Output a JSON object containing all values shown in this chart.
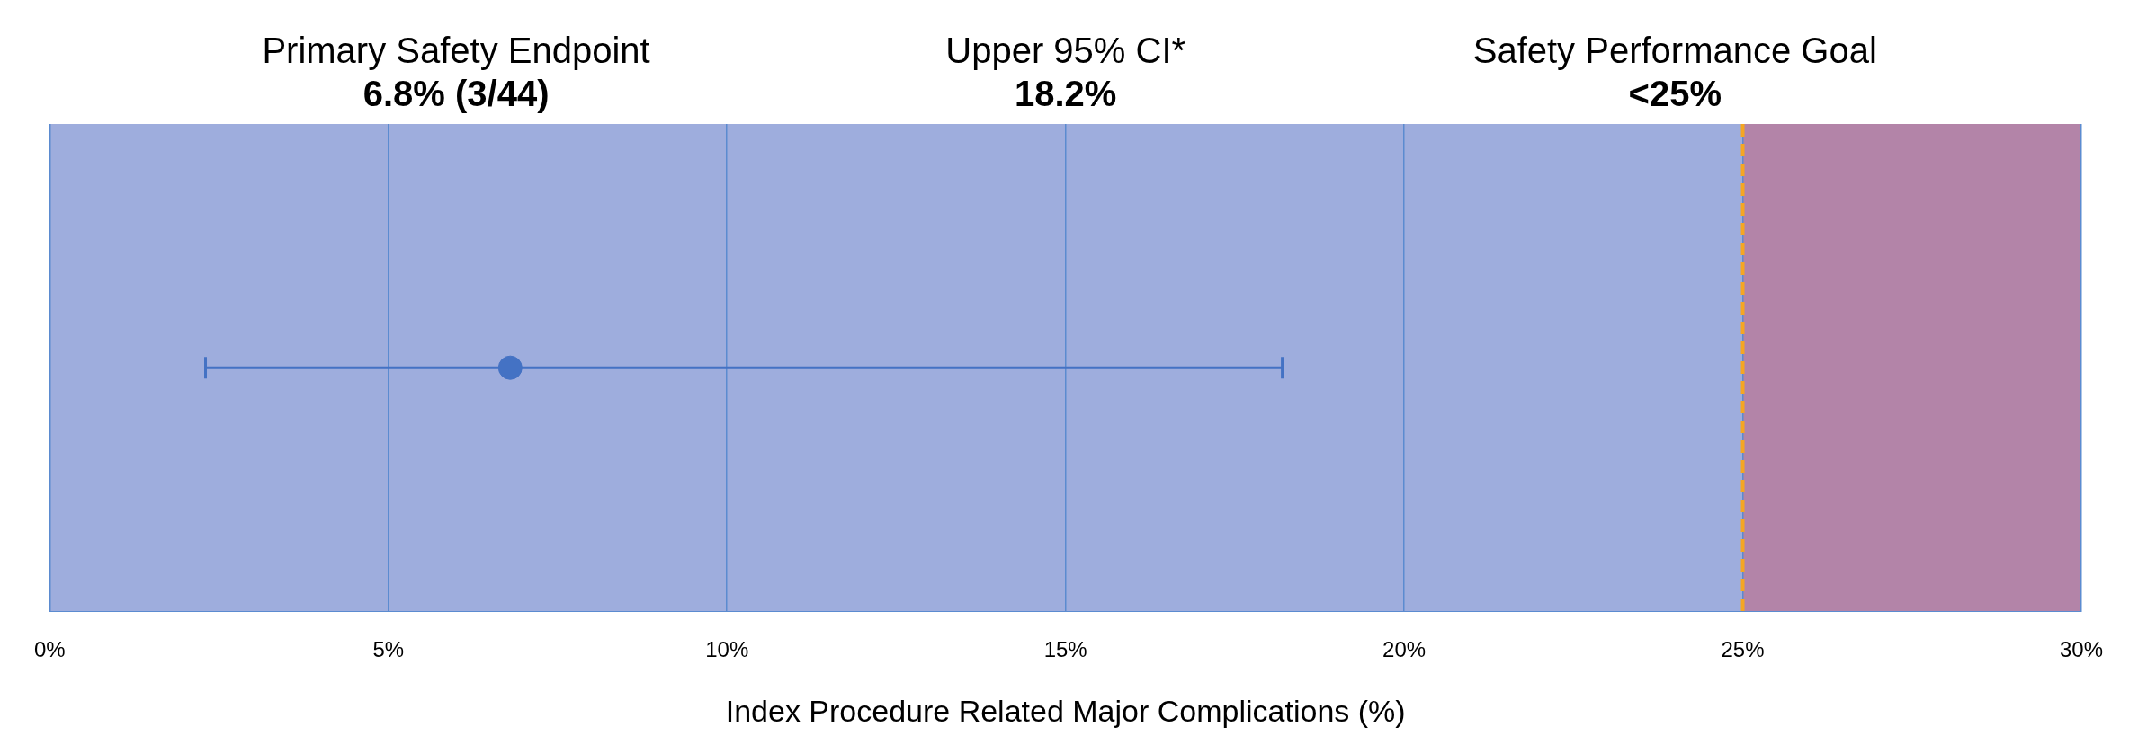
{
  "chart_data": {
    "type": "scatter",
    "orientation": "horizontal",
    "categories": [
      null
    ],
    "series": [
      {
        "color": "#4472c4",
        "values": [
          6.8
        ],
        "errors": [
          [
            2.3,
            18.2
          ]
        ]
      }
    ],
    "xlim": [
      0,
      30
    ],
    "xticks": [
      {
        "value": 0,
        "label": "0%"
      },
      {
        "value": 5,
        "label": "5%"
      },
      {
        "value": 10,
        "label": "10%"
      },
      {
        "value": 15,
        "label": "15%"
      },
      {
        "value": 20,
        "label": "20%"
      },
      {
        "value": 25,
        "label": "25%"
      },
      {
        "value": 30,
        "label": "30%"
      }
    ],
    "xlabel": "Index Procedure Related Major Complications (%)",
    "grid": "x",
    "marker": "circle",
    "bands": [
      {
        "axis": "x",
        "from": 0,
        "to": 25,
        "color": "#9eaddd"
      },
      {
        "axis": "x",
        "from": 25,
        "to": 30,
        "color": "#b384a8"
      }
    ],
    "ref_lines": [
      {
        "axis": "x",
        "value": 25,
        "color": "#f5a623",
        "line_style": "dashed"
      }
    ],
    "annotations": [
      "Primary Safety Endpoint\n6.8% (3/44)",
      "Upper 95% CI*\n18.2%",
      "Safety Performance Goal\n<25%"
    ]
  }
}
